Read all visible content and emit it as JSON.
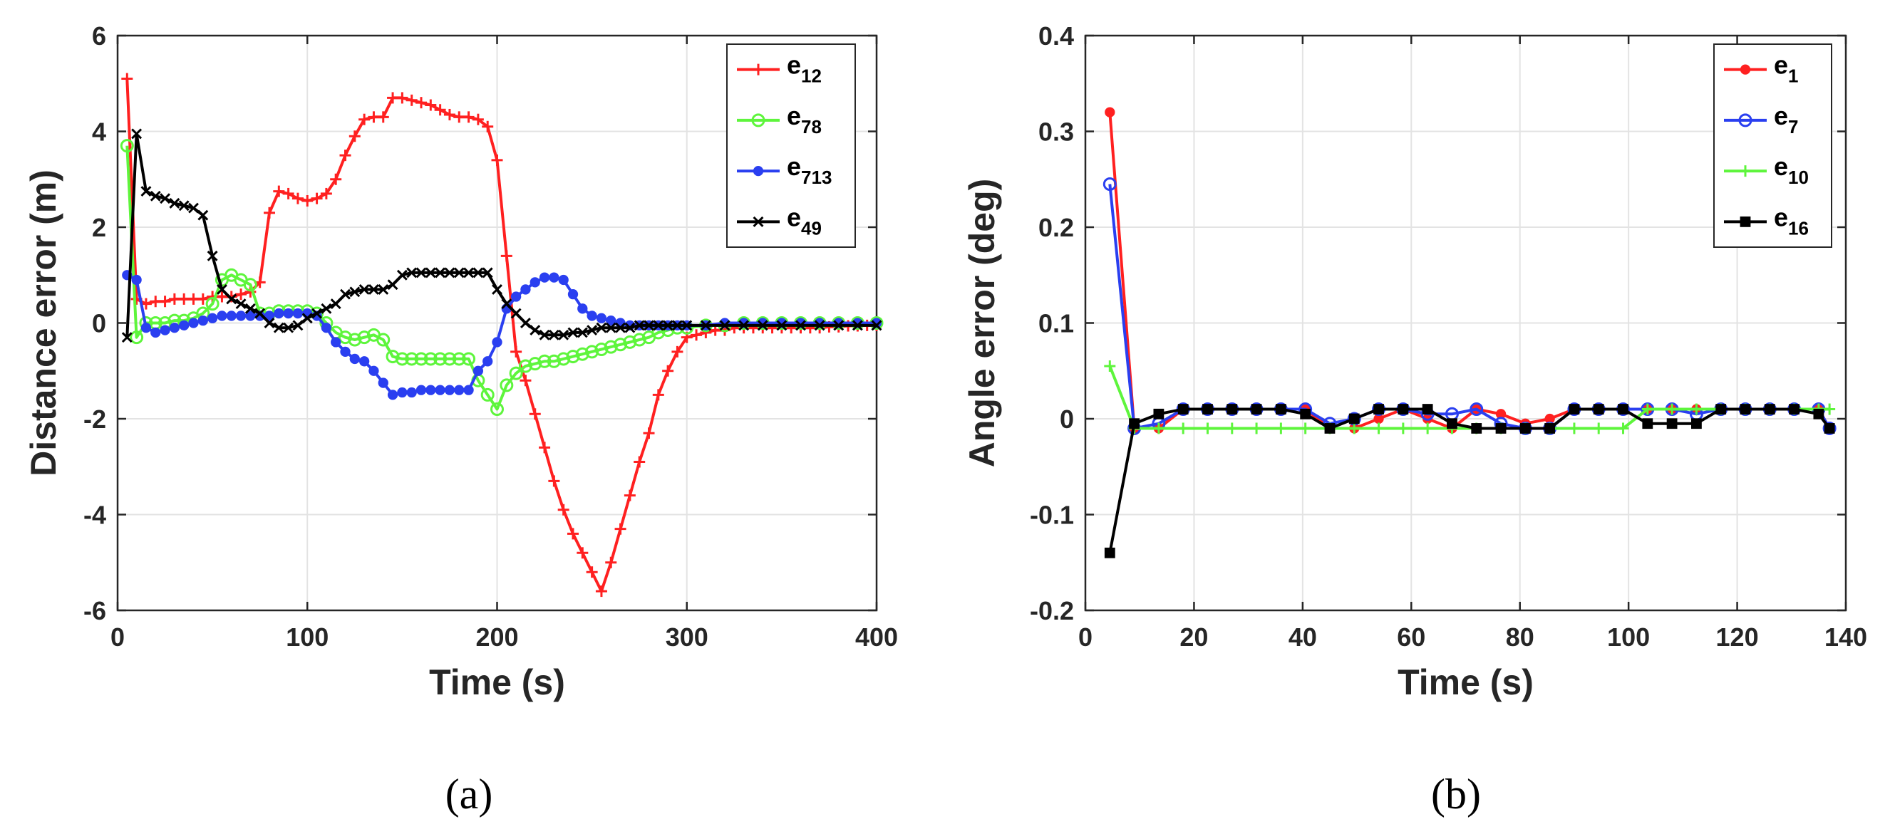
{
  "chart_data": [
    {
      "type": "line",
      "caption": "(a)",
      "xlabel": "Time (s)",
      "ylabel": "Distance error (m)",
      "xlim": [
        0,
        400
      ],
      "ylim": [
        -6,
        6
      ],
      "xticks": [
        0,
        100,
        200,
        300,
        400
      ],
      "yticks": [
        -6,
        -4,
        -2,
        0,
        2,
        4,
        6
      ],
      "grid": true,
      "legend_position": "top-right",
      "series": [
        {
          "name": "e12",
          "label_main": "e",
          "label_sub": "12",
          "color": "#ff2020",
          "marker": "plus",
          "x": [
            5,
            10,
            15,
            20,
            25,
            30,
            35,
            40,
            45,
            50,
            55,
            60,
            65,
            70,
            75,
            80,
            85,
            90,
            95,
            100,
            105,
            110,
            115,
            120,
            125,
            130,
            135,
            140,
            145,
            150,
            155,
            160,
            165,
            170,
            175,
            180,
            185,
            190,
            195,
            200,
            205,
            210,
            215,
            220,
            225,
            230,
            235,
            240,
            245,
            250,
            255,
            260,
            265,
            270,
            275,
            280,
            285,
            290,
            295,
            300,
            305,
            310,
            315,
            320,
            325,
            330,
            335,
            340,
            345,
            350,
            355,
            360,
            365,
            370,
            375,
            380,
            385,
            390,
            395,
            400
          ],
          "y": [
            5.1,
            0.5,
            0.4,
            0.45,
            0.45,
            0.5,
            0.5,
            0.5,
            0.5,
            0.55,
            0.55,
            0.55,
            0.6,
            0.65,
            0.85,
            2.3,
            2.75,
            2.7,
            2.6,
            2.55,
            2.6,
            2.7,
            3.0,
            3.5,
            3.9,
            4.25,
            4.3,
            4.3,
            4.7,
            4.7,
            4.65,
            4.6,
            4.55,
            4.45,
            4.35,
            4.3,
            4.3,
            4.25,
            4.1,
            3.4,
            1.4,
            -0.6,
            -1.2,
            -1.9,
            -2.6,
            -3.3,
            -3.9,
            -4.4,
            -4.8,
            -5.2,
            -5.6,
            -5.0,
            -4.3,
            -3.6,
            -2.9,
            -2.3,
            -1.5,
            -1.0,
            -0.6,
            -0.3,
            -0.25,
            -0.2,
            -0.15,
            -0.15,
            -0.1,
            -0.1,
            -0.1,
            -0.1,
            -0.1,
            -0.1,
            -0.1,
            -0.1,
            -0.1,
            -0.1,
            -0.08,
            -0.08,
            -0.06,
            -0.06,
            -0.05,
            -0.05
          ]
        },
        {
          "name": "e78",
          "label_main": "e",
          "label_sub": "78",
          "color": "#5ef53c",
          "marker": "circle",
          "x": [
            5,
            10,
            15,
            20,
            25,
            30,
            35,
            40,
            45,
            50,
            55,
            60,
            65,
            70,
            75,
            80,
            85,
            90,
            95,
            100,
            105,
            110,
            115,
            120,
            125,
            130,
            135,
            140,
            145,
            150,
            155,
            160,
            165,
            170,
            175,
            180,
            185,
            190,
            195,
            200,
            205,
            210,
            215,
            220,
            225,
            230,
            235,
            240,
            245,
            250,
            255,
            260,
            265,
            270,
            275,
            280,
            285,
            290,
            295,
            300,
            310,
            320,
            330,
            340,
            350,
            360,
            370,
            380,
            390,
            400
          ],
          "y": [
            3.7,
            -0.3,
            0.0,
            0.0,
            0.0,
            0.05,
            0.05,
            0.1,
            0.2,
            0.4,
            0.9,
            1.0,
            0.9,
            0.8,
            0.2,
            0.2,
            0.25,
            0.25,
            0.25,
            0.25,
            0.2,
            0.0,
            -0.2,
            -0.3,
            -0.35,
            -0.3,
            -0.25,
            -0.35,
            -0.7,
            -0.75,
            -0.75,
            -0.75,
            -0.75,
            -0.75,
            -0.75,
            -0.75,
            -0.75,
            -1.2,
            -1.5,
            -1.8,
            -1.3,
            -1.05,
            -0.9,
            -0.85,
            -0.8,
            -0.8,
            -0.75,
            -0.7,
            -0.65,
            -0.6,
            -0.55,
            -0.5,
            -0.45,
            -0.4,
            -0.35,
            -0.3,
            -0.2,
            -0.15,
            -0.1,
            -0.1,
            -0.05,
            -0.05,
            0.0,
            0.0,
            0.0,
            0.0,
            0.0,
            0.0,
            0.0,
            0.0
          ]
        },
        {
          "name": "e713",
          "label_main": "e",
          "label_sub": "713",
          "color": "#2a3ff0",
          "marker": "dot",
          "x": [
            5,
            10,
            15,
            20,
            25,
            30,
            35,
            40,
            45,
            50,
            55,
            60,
            65,
            70,
            75,
            80,
            85,
            90,
            95,
            100,
            105,
            110,
            115,
            120,
            125,
            130,
            135,
            140,
            145,
            150,
            155,
            160,
            165,
            170,
            175,
            180,
            185,
            190,
            195,
            200,
            205,
            210,
            215,
            220,
            225,
            230,
            235,
            240,
            245,
            250,
            255,
            260,
            265,
            270,
            275,
            280,
            285,
            290,
            295,
            300,
            310,
            320,
            330,
            340,
            350,
            360,
            370,
            380,
            390,
            400
          ],
          "y": [
            1.0,
            0.9,
            -0.1,
            -0.2,
            -0.15,
            -0.1,
            -0.05,
            0.0,
            0.05,
            0.1,
            0.15,
            0.15,
            0.15,
            0.15,
            0.15,
            0.15,
            0.2,
            0.2,
            0.2,
            0.2,
            0.15,
            -0.1,
            -0.4,
            -0.6,
            -0.75,
            -0.8,
            -1.0,
            -1.25,
            -1.5,
            -1.45,
            -1.45,
            -1.4,
            -1.4,
            -1.4,
            -1.4,
            -1.4,
            -1.4,
            -1.0,
            -0.8,
            -0.4,
            0.3,
            0.55,
            0.7,
            0.85,
            0.95,
            0.95,
            0.9,
            0.6,
            0.3,
            0.15,
            0.1,
            0.05,
            0.0,
            -0.05,
            -0.05,
            -0.05,
            -0.05,
            -0.05,
            -0.05,
            -0.05,
            -0.05,
            0.0,
            0.0,
            0.0,
            0.0,
            0.0,
            0.0,
            0.0,
            0.0,
            0.0
          ]
        },
        {
          "name": "e49",
          "label_main": "e",
          "label_sub": "49",
          "color": "#000000",
          "marker": "x",
          "x": [
            5,
            10,
            15,
            20,
            25,
            30,
            35,
            40,
            45,
            50,
            55,
            60,
            65,
            70,
            75,
            80,
            85,
            90,
            95,
            100,
            105,
            110,
            115,
            120,
            125,
            130,
            135,
            140,
            145,
            150,
            155,
            160,
            165,
            170,
            175,
            180,
            185,
            190,
            195,
            200,
            205,
            210,
            215,
            220,
            225,
            230,
            235,
            240,
            245,
            250,
            255,
            260,
            265,
            270,
            275,
            280,
            285,
            290,
            295,
            300,
            310,
            320,
            330,
            340,
            350,
            360,
            370,
            380,
            390,
            400
          ],
          "y": [
            -0.3,
            3.95,
            2.75,
            2.65,
            2.6,
            2.5,
            2.45,
            2.4,
            2.25,
            1.4,
            0.7,
            0.5,
            0.4,
            0.3,
            0.2,
            0.0,
            -0.1,
            -0.1,
            -0.05,
            0.1,
            0.2,
            0.3,
            0.4,
            0.6,
            0.65,
            0.7,
            0.7,
            0.7,
            0.8,
            1.0,
            1.05,
            1.05,
            1.05,
            1.05,
            1.05,
            1.05,
            1.05,
            1.05,
            1.05,
            0.7,
            0.4,
            0.2,
            0.0,
            -0.15,
            -0.25,
            -0.25,
            -0.25,
            -0.2,
            -0.2,
            -0.15,
            -0.1,
            -0.1,
            -0.1,
            -0.1,
            -0.05,
            -0.05,
            -0.05,
            -0.05,
            -0.05,
            -0.05,
            -0.05,
            -0.05,
            -0.05,
            -0.05,
            -0.05,
            -0.05,
            -0.05,
            -0.05,
            -0.05,
            -0.05
          ]
        }
      ]
    },
    {
      "type": "line",
      "caption": "(b)",
      "xlabel": "Time (s)",
      "ylabel": "Angle error (deg)",
      "xlim": [
        0,
        140
      ],
      "ylim": [
        -0.2,
        0.4
      ],
      "xticks": [
        0,
        20,
        40,
        60,
        80,
        100,
        120,
        140
      ],
      "yticks": [
        -0.2,
        -0.1,
        0,
        0.1,
        0.2,
        0.3,
        0.4
      ],
      "grid": true,
      "legend_position": "top-right",
      "series": [
        {
          "name": "e1",
          "label_main": "e",
          "label_sub": "1",
          "color": "#ff2020",
          "marker": "dot",
          "x": [
            4.5,
            9,
            13.5,
            18,
            22.5,
            27,
            31.5,
            36,
            40.5,
            45,
            49.5,
            54,
            58.5,
            63,
            67.5,
            72,
            76.5,
            81,
            85.5,
            90,
            94.5,
            99,
            103.5,
            108,
            112.5,
            117,
            121.5,
            126,
            130.5,
            135,
            137
          ],
          "y": [
            0.32,
            -0.01,
            -0.01,
            0.01,
            0.01,
            0.01,
            0.01,
            0.01,
            0.01,
            -0.01,
            -0.01,
            0.0,
            0.01,
            0.0,
            -0.01,
            0.01,
            0.005,
            -0.005,
            0.0,
            0.01,
            0.01,
            0.01,
            0.01,
            0.01,
            0.01,
            0.01,
            0.01,
            0.01,
            0.01,
            0.01,
            -0.01
          ]
        },
        {
          "name": "e7",
          "label_main": "e",
          "label_sub": "7",
          "color": "#2a3ff0",
          "marker": "circle",
          "x": [
            4.5,
            9,
            13.5,
            18,
            22.5,
            27,
            31.5,
            36,
            40.5,
            45,
            49.5,
            54,
            58.5,
            63,
            67.5,
            72,
            76.5,
            81,
            85.5,
            90,
            94.5,
            99,
            103.5,
            108,
            112.5,
            117,
            121.5,
            126,
            130.5,
            135,
            137
          ],
          "y": [
            0.245,
            -0.01,
            -0.005,
            0.01,
            0.01,
            0.01,
            0.01,
            0.01,
            0.01,
            -0.005,
            0.0,
            0.01,
            0.01,
            0.005,
            0.005,
            0.01,
            -0.005,
            -0.01,
            -0.01,
            0.01,
            0.01,
            0.01,
            0.01,
            0.01,
            0.005,
            0.01,
            0.01,
            0.01,
            0.01,
            0.01,
            -0.01
          ]
        },
        {
          "name": "e10",
          "label_main": "e",
          "label_sub": "10",
          "color": "#5ef53c",
          "marker": "plus",
          "x": [
            4.5,
            9,
            13.5,
            18,
            22.5,
            27,
            31.5,
            36,
            40.5,
            45,
            49.5,
            54,
            58.5,
            63,
            67.5,
            72,
            76.5,
            81,
            85.5,
            90,
            94.5,
            99,
            103.5,
            108,
            112.5,
            117,
            121.5,
            126,
            130.5,
            135,
            137
          ],
          "y": [
            0.055,
            -0.01,
            -0.01,
            -0.01,
            -0.01,
            -0.01,
            -0.01,
            -0.01,
            -0.01,
            -0.01,
            -0.01,
            -0.01,
            -0.01,
            -0.01,
            -0.01,
            -0.01,
            -0.01,
            -0.01,
            -0.01,
            -0.01,
            -0.01,
            -0.01,
            0.01,
            0.01,
            0.01,
            0.01,
            0.01,
            0.01,
            0.01,
            0.01,
            0.01
          ]
        },
        {
          "name": "e16",
          "label_main": "e",
          "label_sub": "16",
          "color": "#000000",
          "marker": "square",
          "x": [
            4.5,
            9,
            13.5,
            18,
            22.5,
            27,
            31.5,
            36,
            40.5,
            45,
            49.5,
            54,
            58.5,
            63,
            67.5,
            72,
            76.5,
            81,
            85.5,
            90,
            94.5,
            99,
            103.5,
            108,
            112.5,
            117,
            121.5,
            126,
            130.5,
            135,
            137
          ],
          "y": [
            -0.14,
            -0.005,
            0.005,
            0.01,
            0.01,
            0.01,
            0.01,
            0.01,
            0.005,
            -0.01,
            0.0,
            0.01,
            0.01,
            0.01,
            -0.005,
            -0.01,
            -0.01,
            -0.01,
            -0.01,
            0.01,
            0.01,
            0.01,
            -0.005,
            -0.005,
            -0.005,
            0.01,
            0.01,
            0.01,
            0.01,
            0.005,
            -0.01
          ]
        }
      ]
    }
  ]
}
